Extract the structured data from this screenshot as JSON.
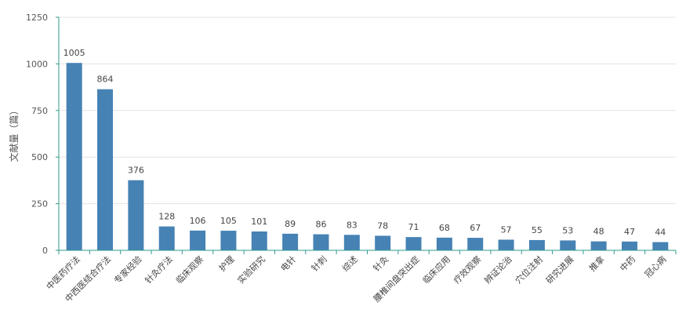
{
  "chart_data": {
    "type": "bar",
    "title": "",
    "xlabel": "",
    "ylabel": "文献量（篇）",
    "ylim": [
      0,
      1250
    ],
    "yticks": [
      0,
      250,
      500,
      750,
      1000,
      1250
    ],
    "grid": true,
    "categories": [
      "中医药疗法",
      "中西医结合疗法",
      "专家经验",
      "针灸疗法",
      "临床观察",
      "护理",
      "实验研究",
      "电针",
      "针刺",
      "综述",
      "针灸",
      "腰椎间盘突出症",
      "临床应用",
      "疗效观察",
      "辨证论治",
      "穴位注射",
      "研究进展",
      "推拿",
      "中药",
      "冠心病"
    ],
    "values": [
      1005,
      864,
      376,
      128,
      106,
      105,
      101,
      89,
      86,
      83,
      78,
      71,
      68,
      67,
      57,
      55,
      53,
      48,
      47,
      44
    ],
    "colors": {
      "bar": "#4682b4",
      "axis": "#2f9a8e",
      "grid": "#e3e3e3"
    }
  }
}
